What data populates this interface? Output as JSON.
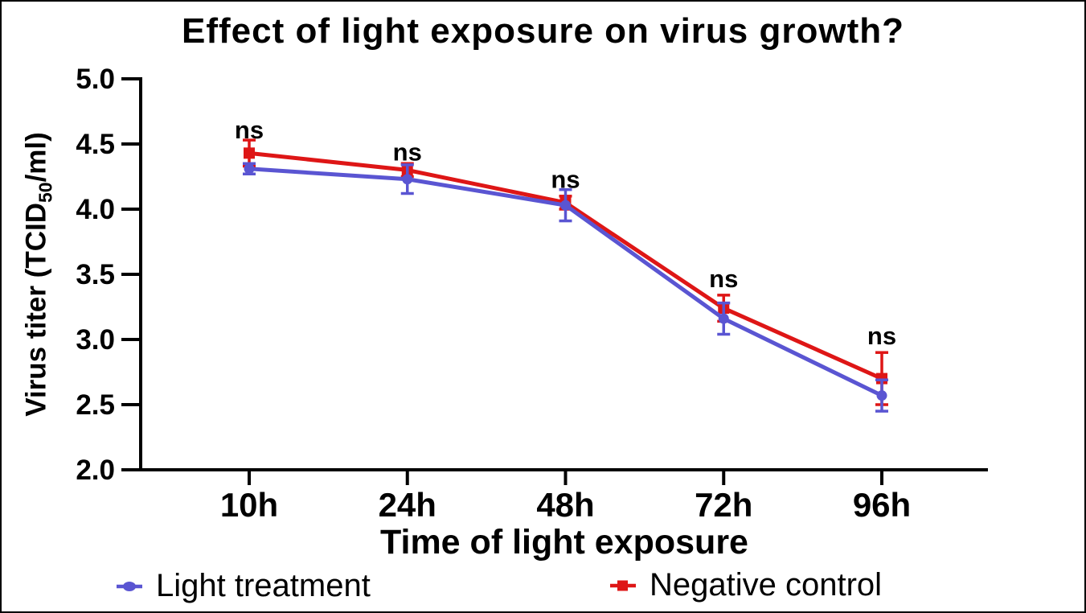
{
  "figure": {
    "background": "#ffffff",
    "border_color": "#000000"
  },
  "chart_data": {
    "type": "line",
    "title": "Effect of light exposure on virus growth?",
    "xlabel": "Time of light exposure",
    "ylabel": "Virus titer (TCID50/ml)",
    "ylabel_parts": {
      "pre": "Virus titer (TCID",
      "sub": "50",
      "post": "/ml)"
    },
    "categories": [
      "10h",
      "24h",
      "48h",
      "72h",
      "96h"
    ],
    "ylim": [
      2.0,
      5.0
    ],
    "yticks": [
      5.0,
      4.5,
      4.0,
      3.5,
      3.0,
      2.5,
      2.0
    ],
    "grid": false,
    "legend_position": "bottom",
    "axis_color": "#000000",
    "series": [
      {
        "name": "Light treatment",
        "color": "#5a55d2",
        "marker": "circle",
        "values": [
          4.31,
          4.23,
          4.03,
          3.16,
          2.57
        ],
        "errors": [
          0.04,
          0.11,
          0.12,
          0.12,
          0.12
        ]
      },
      {
        "name": "Negative control",
        "color": "#de1616",
        "marker": "square",
        "values": [
          4.43,
          4.3,
          4.05,
          3.24,
          2.7
        ],
        "errors": [
          0.1,
          0.05,
          0.05,
          0.1,
          0.2
        ]
      }
    ],
    "annotations": [
      {
        "label": "ns",
        "category": "10h",
        "y": 4.61
      },
      {
        "label": "ns",
        "category": "24h",
        "y": 4.44
      },
      {
        "label": "ns",
        "category": "48h",
        "y": 4.23
      },
      {
        "label": "ns",
        "category": "72h",
        "y": 3.47
      },
      {
        "label": "ns",
        "category": "96h",
        "y": 3.03
      }
    ]
  }
}
